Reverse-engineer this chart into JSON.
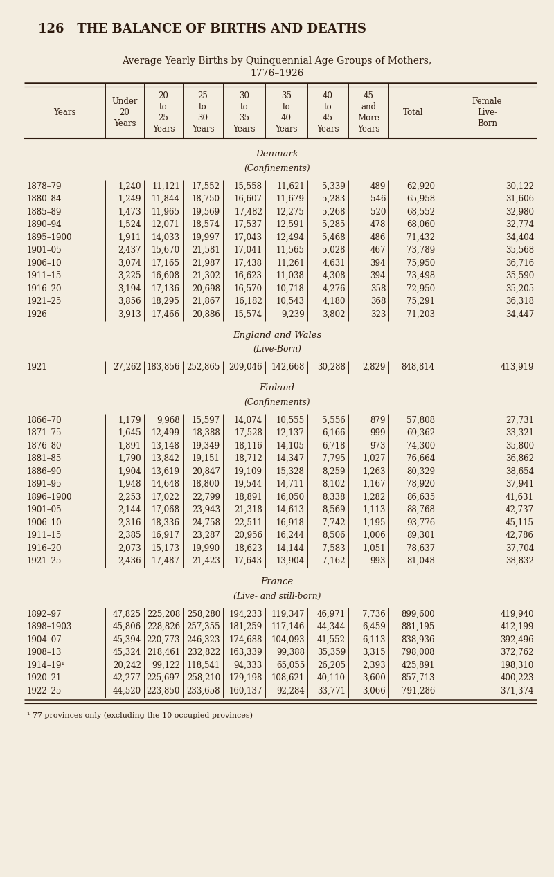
{
  "page_header": "126   THE BALANCE OF BIRTHS AND DEATHS",
  "title_line1": "Average Yearly Births by Quinquennial Age Groups of Mothers,",
  "title_line2": "1776–1926",
  "bg_color": "#f3ede0",
  "text_color": "#2d1a0e",
  "col_headers": [
    "Years",
    "Under\n20\nYears",
    "20\nto\n25\nYears",
    "25\nto\n30\nYears",
    "30\nto\n35\nYears",
    "35\nto\n40\nYears",
    "40\nto\n45\nYears",
    "45\nand\nMore\nYears",
    "Total",
    "Female\nLive-\nBorn"
  ],
  "sections": [
    {
      "name": "Denmark",
      "subtitle": "(Confinements)",
      "rows": [
        [
          "1878–79",
          "1,240",
          "11,121",
          "17,552",
          "15,558",
          "11,621",
          "5,339",
          "489",
          "62,920",
          "30,122"
        ],
        [
          "1880–84",
          "1,249",
          "11,844",
          "18,750",
          "16,607",
          "11,679",
          "5,283",
          "546",
          "65,958",
          "31,606"
        ],
        [
          "1885–89",
          "1,473",
          "11,965",
          "19,569",
          "17,482",
          "12,275",
          "5,268",
          "520",
          "68,552",
          "32,980"
        ],
        [
          "1890–94",
          "1,524",
          "12,071",
          "18,574",
          "17,537",
          "12,591",
          "5,285",
          "478",
          "68,060",
          "32,774"
        ],
        [
          "1895–1900",
          "1,911",
          "14,033",
          "19,997",
          "17,043",
          "12,494",
          "5,468",
          "486",
          "71,432",
          "34,404"
        ],
        [
          "1901–05",
          "2,437",
          "15,670",
          "21,581",
          "17,041",
          "11,565",
          "5,028",
          "467",
          "73,789",
          "35,568"
        ],
        [
          "1906–10",
          "3,074",
          "17,165",
          "21,987",
          "17,438",
          "11,261",
          "4,631",
          "394",
          "75,950",
          "36,716"
        ],
        [
          "1911–15",
          "3,225",
          "16,608",
          "21,302",
          "16,623",
          "11,038",
          "4,308",
          "394",
          "73,498",
          "35,590"
        ],
        [
          "1916–20",
          "3,194",
          "17,136",
          "20,698",
          "16,570",
          "10,718",
          "4,276",
          "358",
          "72,950",
          "35,205"
        ],
        [
          "1921–25",
          "3,856",
          "18,295",
          "21,867",
          "16,182",
          "10,543",
          "4,180",
          "368",
          "75,291",
          "36,318"
        ],
        [
          "1926",
          "3,913",
          "17,466",
          "20,886",
          "15,574",
          "9,239",
          "3,802",
          "323",
          "71,203",
          "34,447"
        ]
      ]
    },
    {
      "name": "England and Wales",
      "subtitle": "(Live-Born)",
      "rows": [
        [
          "1921",
          "27,262",
          "183,856",
          "252,865",
          "209,046",
          "142,668",
          "30,288",
          "2,829",
          "848,814",
          "413,919"
        ]
      ]
    },
    {
      "name": "Finland",
      "subtitle": "(Confinements)",
      "rows": [
        [
          "1866–70",
          "1,179",
          "9,968",
          "15,597",
          "14,074",
          "10,555",
          "5,556",
          "879",
          "57,808",
          "27,731"
        ],
        [
          "1871–75",
          "1,645",
          "12,499",
          "18,388",
          "17,528",
          "12,137",
          "6,166",
          "999",
          "69,362",
          "33,321"
        ],
        [
          "1876–80",
          "1,891",
          "13,148",
          "19,349",
          "18,116",
          "14,105",
          "6,718",
          "973",
          "74,300",
          "35,800"
        ],
        [
          "1881–85",
          "1,790",
          "13,842",
          "19,151",
          "18,712",
          "14,347",
          "7,795",
          "1,027",
          "76,664",
          "36,862"
        ],
        [
          "1886–90",
          "1,904",
          "13,619",
          "20,847",
          "19,109",
          "15,328",
          "8,259",
          "1,263",
          "80,329",
          "38,654"
        ],
        [
          "1891–95",
          "1,948",
          "14,648",
          "18,800",
          "19,544",
          "14,711",
          "8,102",
          "1,167",
          "78,920",
          "37,941"
        ],
        [
          "1896–1900",
          "2,253",
          "17,022",
          "22,799",
          "18,891",
          "16,050",
          "8,338",
          "1,282",
          "86,635",
          "41,631"
        ],
        [
          "1901–05",
          "2,144",
          "17,068",
          "23,943",
          "21,318",
          "14,613",
          "8,569",
          "1,113",
          "88,768",
          "42,737"
        ],
        [
          "1906–10",
          "2,316",
          "18,336",
          "24,758",
          "22,511",
          "16,918",
          "7,742",
          "1,195",
          "93,776",
          "45,115"
        ],
        [
          "1911–15",
          "2,385",
          "16,917",
          "23,287",
          "20,956",
          "16,244",
          "8,506",
          "1,006",
          "89,301",
          "42,786"
        ],
        [
          "1916–20",
          "2,073",
          "15,173",
          "19,990",
          "18,623",
          "14,144",
          "7,583",
          "1,051",
          "78,637",
          "37,704"
        ],
        [
          "1921–25",
          "2,436",
          "17,487",
          "21,423",
          "17,643",
          "13,904",
          "7,162",
          "993",
          "81,048",
          "38,832"
        ]
      ]
    },
    {
      "name": "France",
      "subtitle": "(Live- and still-born)",
      "rows": [
        [
          "1892–97",
          "47,825",
          "225,208",
          "258,280",
          "194,233",
          "119,347",
          "46,971",
          "7,736",
          "899,600",
          "419,940"
        ],
        [
          "1898–1903",
          "45,806",
          "228,826",
          "257,355",
          "181,259",
          "117,146",
          "44,344",
          "6,459",
          "881,195",
          "412,199"
        ],
        [
          "1904–07",
          "45,394",
          "220,773",
          "246,323",
          "174,688",
          "104,093",
          "41,552",
          "6,113",
          "838,936",
          "392,496"
        ],
        [
          "1908–13",
          "45,324",
          "218,461",
          "232,822",
          "163,339",
          "99,388",
          "35,359",
          "3,315",
          "798,008",
          "372,762"
        ],
        [
          "1914–19¹",
          "20,242",
          "99,122",
          "118,541",
          "94,333",
          "65,055",
          "26,205",
          "2,393",
          "425,891",
          "198,310"
        ],
        [
          "1920–21",
          "42,277",
          "225,697",
          "258,210",
          "179,198",
          "108,621",
          "40,110",
          "3,600",
          "857,713",
          "400,223"
        ],
        [
          "1922–25",
          "44,520",
          "223,850",
          "233,658",
          "160,137",
          "92,284",
          "33,771",
          "3,066",
          "791,286",
          "371,374"
        ]
      ]
    }
  ],
  "footnote": "¹ 77 provinces only (excluding the 10 occupied provinces)"
}
